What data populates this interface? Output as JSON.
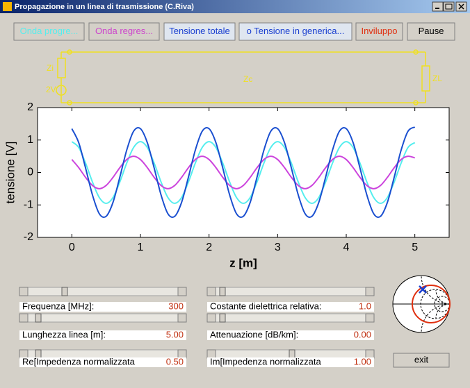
{
  "window": {
    "title": "Propagazione in un linea di trasmissione (C.Riva)"
  },
  "buttons": [
    "Onda progre...",
    "Onda regres...",
    "Tensione totale",
    "o Tensione in generica...",
    "Inviluppo",
    "Pause"
  ],
  "circuit": {
    "source_impedance": "Zi",
    "source": "2V",
    "line": "Zc",
    "load": "ZL"
  },
  "chart_data": {
    "type": "line",
    "xlabel": "z [m]",
    "ylabel": "tensione [V]",
    "x": [
      0,
      0.1,
      0.2,
      0.3,
      0.4,
      0.5,
      0.6,
      0.7,
      0.8,
      0.9,
      1,
      1.1,
      1.2,
      1.3,
      1.4,
      1.5,
      1.6,
      1.7,
      1.8,
      1.9,
      2,
      2.1,
      2.2,
      2.3,
      2.4,
      2.5,
      2.6,
      2.7,
      2.8,
      2.9,
      3,
      3.1,
      3.2,
      3.3,
      3.4,
      3.5,
      3.6,
      3.7,
      3.8,
      3.9,
      4,
      4.1,
      4.2,
      4.3,
      4.4,
      4.5,
      4.6,
      4.7,
      4.8,
      4.9,
      5
    ],
    "series": [
      {
        "color": "#55eeee",
        "values": [
          0.95,
          0.77,
          0.29,
          -0.29,
          -0.77,
          -0.95,
          -0.77,
          -0.29,
          0.29,
          0.77,
          0.95,
          0.77,
          0.29,
          -0.29,
          -0.77,
          -0.95,
          -0.77,
          -0.29,
          0.29,
          0.77,
          0.95,
          0.77,
          0.29,
          -0.29,
          -0.77,
          -0.95,
          -0.77,
          -0.29,
          0.29,
          0.77,
          0.95,
          0.77,
          0.29,
          -0.29,
          -0.77,
          -0.95,
          -0.77,
          -0.29,
          0.29,
          0.77,
          0.95,
          0.77,
          0.29,
          -0.29,
          -0.77,
          -0.95,
          -0.77,
          -0.29,
          0.29,
          0.77,
          0.92
        ]
      },
      {
        "color": "#cc44dd",
        "values": [
          0.4,
          0.15,
          -0.15,
          -0.4,
          -0.5,
          -0.4,
          -0.15,
          0.15,
          0.4,
          0.5,
          0.4,
          0.15,
          -0.15,
          -0.4,
          -0.5,
          -0.4,
          -0.15,
          0.15,
          0.4,
          0.5,
          0.4,
          0.15,
          -0.15,
          -0.4,
          -0.5,
          -0.4,
          -0.15,
          0.15,
          0.4,
          0.5,
          0.4,
          0.15,
          -0.15,
          -0.4,
          -0.5,
          -0.4,
          -0.15,
          0.15,
          0.4,
          0.5,
          0.4,
          0.15,
          -0.15,
          -0.4,
          -0.5,
          -0.4,
          -0.15,
          0.15,
          0.4,
          0.5,
          0.45
        ]
      },
      {
        "color": "#1a4fd0",
        "values": [
          1.35,
          0.92,
          0.14,
          -0.69,
          -1.27,
          -1.35,
          -0.92,
          -0.14,
          0.69,
          1.27,
          1.35,
          0.92,
          0.14,
          -0.69,
          -1.27,
          -1.35,
          -0.92,
          -0.14,
          0.69,
          1.27,
          1.35,
          0.92,
          0.14,
          -0.69,
          -1.27,
          -1.35,
          -0.92,
          -0.14,
          0.69,
          1.27,
          1.35,
          0.92,
          0.14,
          -0.69,
          -1.27,
          -1.35,
          -0.92,
          -0.14,
          0.69,
          1.27,
          1.35,
          0.92,
          0.14,
          -0.69,
          -1.27,
          -1.35,
          -0.92,
          -0.14,
          0.69,
          1.27,
          1.4
        ]
      }
    ],
    "xlim": [
      -0.5,
      5.5
    ],
    "xticks": [
      0,
      1,
      2,
      3,
      4,
      5
    ],
    "ylim": [
      -2,
      2
    ],
    "yticks": [
      -2,
      -1,
      0,
      1,
      2
    ]
  },
  "controls": [
    {
      "label": "Frequenza [MHz]:",
      "value": "300"
    },
    {
      "label": "Lunghezza linea [m]:",
      "value": "5.00"
    },
    {
      "label": "Re[Impedenza normalizzata",
      "value": "0.50"
    },
    {
      "label": "Costante dielettrica relativa:",
      "value": "1.0"
    },
    {
      "label": "Attenuazione [dB/km]:",
      "value": "0.00"
    },
    {
      "label": "Im[Impedenza normalizzata",
      "value": "1.00"
    }
  ],
  "exit": "exit"
}
